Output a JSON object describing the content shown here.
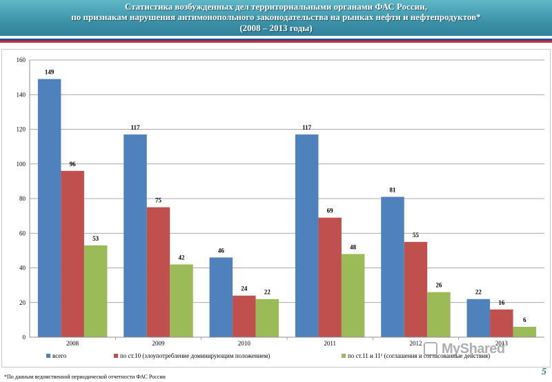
{
  "header": {
    "title_line1": "Статистика возбужденных дел территориальными органами ФАС России,",
    "title_line2": "по признакам нарушения антимонопольного законодательства на рынках нефти и нефтепродуктов*",
    "title_line3": "(2008 – 2013 годы)"
  },
  "footer": {
    "footnote": "*По данным ведомственной периодической отчетности ФАС России",
    "page_number": "5"
  },
  "watermark": {
    "text": "MyShared"
  },
  "colors": {
    "series1": "#4f81bd",
    "series2": "#c0504d",
    "series3": "#9bbb59"
  },
  "chart_data": {
    "type": "bar",
    "categories": [
      "2008",
      "2009",
      "2010",
      "2011",
      "2012",
      "2013"
    ],
    "series": [
      {
        "name": "всего",
        "values": [
          149,
          117,
          46,
          117,
          81,
          22
        ]
      },
      {
        "name": "по ст.10 (злоупотребление доминирующим положением)",
        "values": [
          96,
          75,
          24,
          69,
          55,
          16
        ]
      },
      {
        "name": "по ст.11 и 11¹ (соглашения и согласованные действия)",
        "values": [
          53,
          42,
          22,
          48,
          26,
          6
        ]
      }
    ],
    "ylim": [
      0,
      160
    ],
    "yticks": [
      0,
      20,
      40,
      60,
      80,
      100,
      120,
      140,
      160
    ],
    "grid": true,
    "legend": "bottom"
  }
}
